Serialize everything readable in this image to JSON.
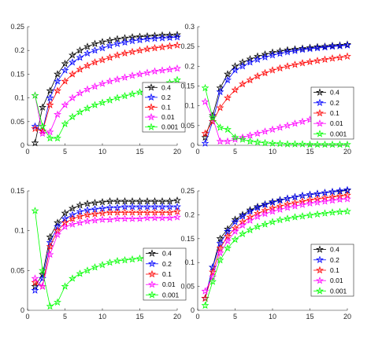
{
  "chart_data": [
    {
      "type": "line",
      "title": "",
      "xlabel": "",
      "ylabel": "",
      "xlim": [
        0,
        20
      ],
      "ylim": [
        0,
        0.25
      ],
      "xticks": [
        0,
        5,
        10,
        15,
        20
      ],
      "yticks": [
        0,
        0.05,
        0.1,
        0.15,
        0.2,
        0.25
      ],
      "grid": false,
      "marker": "pentagram",
      "legend_position": "bottom-right",
      "x": [
        1,
        2,
        3,
        4,
        5,
        6,
        7,
        8,
        9,
        10,
        11,
        12,
        13,
        14,
        15,
        16,
        17,
        18,
        19,
        20
      ],
      "series": [
        {
          "name": "0.4",
          "color": "#000000",
          "values": [
            0.005,
            0.08,
            0.115,
            0.15,
            0.172,
            0.19,
            0.2,
            0.208,
            0.214,
            0.218,
            0.221,
            0.224,
            0.226,
            0.228,
            0.229,
            0.23,
            0.231,
            0.232,
            0.232,
            0.233
          ]
        },
        {
          "name": "0.2",
          "color": "#0000ff",
          "values": [
            0.04,
            0.03,
            0.1,
            0.135,
            0.158,
            0.175,
            0.185,
            0.194,
            0.2,
            0.205,
            0.21,
            0.214,
            0.217,
            0.22,
            0.222,
            0.224,
            0.225,
            0.226,
            0.227,
            0.228
          ]
        },
        {
          "name": "0.1",
          "color": "#ff0000",
          "values": [
            0.035,
            0.03,
            0.085,
            0.115,
            0.135,
            0.15,
            0.16,
            0.168,
            0.175,
            0.18,
            0.185,
            0.19,
            0.194,
            0.197,
            0.2,
            0.203,
            0.205,
            0.207,
            0.209,
            0.211
          ]
        },
        {
          "name": "0.01",
          "color": "#ff00ff",
          "values": [
            0.105,
            0.025,
            0.028,
            0.065,
            0.085,
            0.1,
            0.11,
            0.118,
            0.124,
            0.13,
            0.135,
            0.139,
            0.143,
            0.147,
            0.15,
            0.153,
            0.156,
            0.158,
            0.16,
            0.162
          ]
        },
        {
          "name": "0.001",
          "color": "#00ff00",
          "values": [
            0.105,
            0.04,
            0.015,
            0.015,
            0.045,
            0.06,
            0.07,
            0.078,
            0.085,
            0.09,
            0.095,
            0.1,
            0.104,
            0.108,
            0.112,
            0.116,
            0.12,
            0.124,
            0.132,
            0.138
          ]
        }
      ]
    },
    {
      "type": "line",
      "title": "",
      "xlabel": "",
      "ylabel": "",
      "xlim": [
        0,
        20
      ],
      "ylim": [
        0,
        0.3
      ],
      "xticks": [
        0,
        5,
        10,
        15,
        20
      ],
      "yticks": [
        0,
        0.05,
        0.1,
        0.15,
        0.2,
        0.25,
        0.3
      ],
      "grid": false,
      "marker": "pentagram",
      "legend_position": "bottom-right",
      "x": [
        1,
        2,
        3,
        4,
        5,
        6,
        7,
        8,
        9,
        10,
        11,
        12,
        13,
        14,
        15,
        16,
        17,
        18,
        19,
        20
      ],
      "series": [
        {
          "name": "0.4",
          "color": "#000000",
          "values": [
            0.02,
            0.075,
            0.145,
            0.18,
            0.2,
            0.21,
            0.218,
            0.225,
            0.23,
            0.235,
            0.238,
            0.241,
            0.243,
            0.245,
            0.247,
            0.249,
            0.25,
            0.252,
            0.253,
            0.255
          ]
        },
        {
          "name": "0.2",
          "color": "#0000ff",
          "values": [
            0.005,
            0.06,
            0.135,
            0.165,
            0.19,
            0.2,
            0.21,
            0.217,
            0.223,
            0.228,
            0.232,
            0.236,
            0.239,
            0.242,
            0.244,
            0.246,
            0.248,
            0.25,
            0.251,
            0.253
          ]
        },
        {
          "name": "0.1",
          "color": "#ff0000",
          "values": [
            0.03,
            0.06,
            0.095,
            0.12,
            0.14,
            0.155,
            0.165,
            0.175,
            0.183,
            0.19,
            0.195,
            0.2,
            0.204,
            0.208,
            0.211,
            0.214,
            0.217,
            0.22,
            0.222,
            0.225
          ]
        },
        {
          "name": "0.01",
          "color": "#ff00ff",
          "values": [
            0.11,
            0.07,
            0.01,
            0.01,
            0.015,
            0.02,
            0.025,
            0.03,
            0.035,
            0.04,
            0.045,
            0.05,
            0.055,
            0.06,
            0.065,
            0.07,
            0.075,
            0.08,
            0.085,
            0.09
          ]
        },
        {
          "name": "0.001",
          "color": "#00ff00",
          "values": [
            0.145,
            0.07,
            0.045,
            0.04,
            0.02,
            0.015,
            0.01,
            0.008,
            0.006,
            0.005,
            0.004,
            0.003,
            0.003,
            0.003,
            0.002,
            0.002,
            0.002,
            0.002,
            0.002,
            0.002
          ]
        }
      ]
    },
    {
      "type": "line",
      "title": "",
      "xlabel": "",
      "ylabel": "",
      "xlim": [
        0,
        20
      ],
      "ylim": [
        0,
        0.15
      ],
      "xticks": [
        0,
        5,
        10,
        15,
        20
      ],
      "yticks": [
        0,
        0.05,
        0.1,
        0.15
      ],
      "grid": false,
      "marker": "pentagram",
      "legend_position": "bottom-right",
      "x": [
        1,
        2,
        3,
        4,
        5,
        6,
        7,
        8,
        9,
        10,
        11,
        12,
        13,
        14,
        15,
        16,
        17,
        18,
        19,
        20
      ],
      "series": [
        {
          "name": "0.4",
          "color": "#000000",
          "values": [
            0.03,
            0.045,
            0.092,
            0.11,
            0.122,
            0.128,
            0.132,
            0.134,
            0.135,
            0.136,
            0.137,
            0.137,
            0.137,
            0.137,
            0.137,
            0.137,
            0.137,
            0.137,
            0.137,
            0.138
          ]
        },
        {
          "name": "0.2",
          "color": "#0000ff",
          "values": [
            0.025,
            0.04,
            0.085,
            0.105,
            0.115,
            0.12,
            0.124,
            0.126,
            0.127,
            0.128,
            0.129,
            0.129,
            0.13,
            0.13,
            0.13,
            0.13,
            0.13,
            0.13,
            0.13,
            0.13
          ]
        },
        {
          "name": "0.1",
          "color": "#ff0000",
          "values": [
            0.035,
            0.03,
            0.08,
            0.1,
            0.11,
            0.115,
            0.118,
            0.12,
            0.121,
            0.122,
            0.123,
            0.123,
            0.123,
            0.123,
            0.123,
            0.123,
            0.123,
            0.123,
            0.123,
            0.124
          ]
        },
        {
          "name": "0.01",
          "color": "#ff00ff",
          "values": [
            0.04,
            0.03,
            0.07,
            0.095,
            0.105,
            0.108,
            0.11,
            0.112,
            0.113,
            0.114,
            0.114,
            0.115,
            0.115,
            0.115,
            0.115,
            0.116,
            0.116,
            0.116,
            0.116,
            0.117
          ]
        },
        {
          "name": "0.001",
          "color": "#00ff00",
          "values": [
            0.125,
            0.05,
            0.005,
            0.01,
            0.03,
            0.04,
            0.046,
            0.05,
            0.054,
            0.057,
            0.06,
            0.062,
            0.063,
            0.064,
            0.065,
            0.066,
            0.066,
            0.067,
            0.067,
            0.068
          ]
        }
      ]
    },
    {
      "type": "line",
      "title": "",
      "xlabel": "",
      "ylabel": "",
      "xlim": [
        0,
        20
      ],
      "ylim": [
        0,
        0.25
      ],
      "xticks": [
        0,
        5,
        10,
        15,
        20
      ],
      "yticks": [
        0,
        0.05,
        0.1,
        0.15,
        0.2,
        0.25
      ],
      "grid": false,
      "marker": "pentagram",
      "legend_position": "bottom-right",
      "x": [
        1,
        2,
        3,
        4,
        5,
        6,
        7,
        8,
        9,
        10,
        11,
        12,
        13,
        14,
        15,
        16,
        17,
        18,
        19,
        20
      ],
      "series": [
        {
          "name": "0.4",
          "color": "#000000",
          "values": [
            0.025,
            0.09,
            0.15,
            0.17,
            0.19,
            0.2,
            0.21,
            0.217,
            0.222,
            0.227,
            0.231,
            0.234,
            0.237,
            0.24,
            0.242,
            0.244,
            0.246,
            0.248,
            0.249,
            0.251
          ]
        },
        {
          "name": "0.2",
          "color": "#0000ff",
          "values": [
            0.025,
            0.09,
            0.14,
            0.165,
            0.185,
            0.197,
            0.207,
            0.215,
            0.221,
            0.226,
            0.23,
            0.234,
            0.237,
            0.24,
            0.242,
            0.244,
            0.246,
            0.248,
            0.25,
            0.252
          ]
        },
        {
          "name": "0.1",
          "color": "#ff0000",
          "values": [
            0.025,
            0.08,
            0.13,
            0.155,
            0.172,
            0.185,
            0.195,
            0.203,
            0.209,
            0.214,
            0.218,
            0.222,
            0.225,
            0.228,
            0.231,
            0.233,
            0.235,
            0.237,
            0.239,
            0.241
          ]
        },
        {
          "name": "0.01",
          "color": "#ff00ff",
          "values": [
            0.04,
            0.07,
            0.12,
            0.145,
            0.165,
            0.178,
            0.188,
            0.196,
            0.202,
            0.207,
            0.211,
            0.215,
            0.218,
            0.221,
            0.224,
            0.226,
            0.228,
            0.23,
            0.232,
            0.233
          ]
        },
        {
          "name": "0.001",
          "color": "#00ff00",
          "values": [
            0.01,
            0.06,
            0.105,
            0.13,
            0.148,
            0.16,
            0.168,
            0.175,
            0.18,
            0.185,
            0.189,
            0.192,
            0.195,
            0.197,
            0.199,
            0.201,
            0.203,
            0.205,
            0.206,
            0.207
          ]
        }
      ]
    }
  ]
}
